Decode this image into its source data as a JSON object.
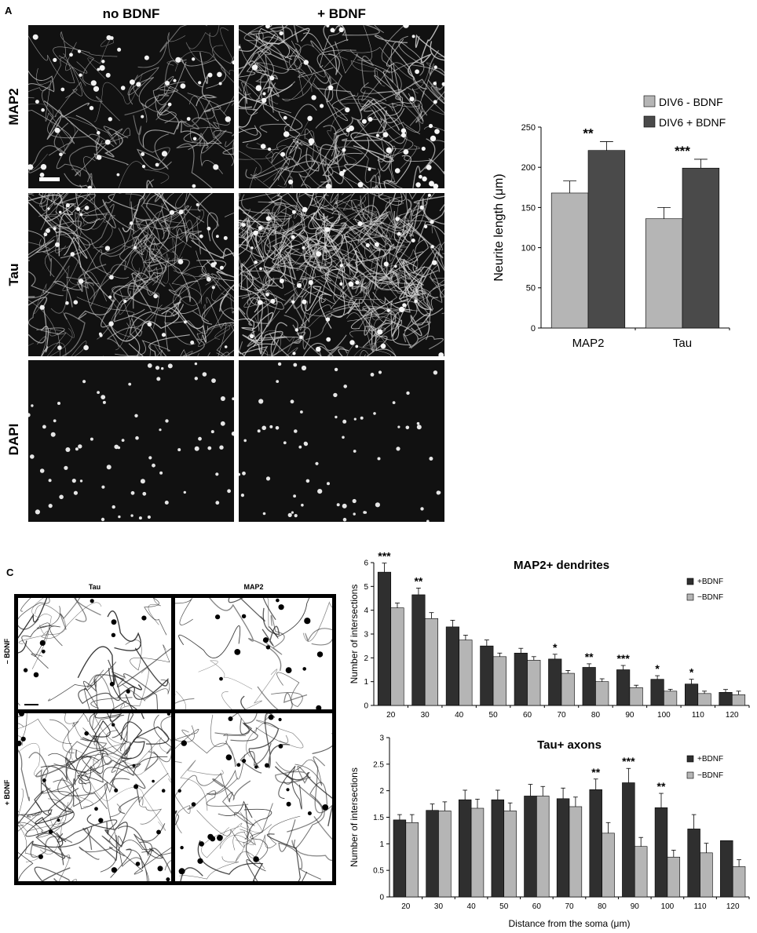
{
  "panelA": {
    "letter": "A",
    "col_labels": [
      "no BDNF",
      "+ BDNF"
    ],
    "row_labels": [
      "MAP2",
      "Tau",
      "DAPI"
    ]
  },
  "panelC": {
    "letter": "C",
    "col_labels": [
      "Tau",
      "MAP2"
    ],
    "row_labels": [
      "– BDNF",
      "+ BDNF"
    ]
  },
  "colors": {
    "light_bar": "#b5b5b5",
    "dark_bar": "#4a4a4a",
    "darkest_bar": "#2f2f2f"
  },
  "chart_data": [
    {
      "panel": "B",
      "type": "bar",
      "categories": [
        "MAP2",
        "Tau"
      ],
      "ylabel": "Neurite length (μm)",
      "ylim": [
        0,
        250
      ],
      "yticks": [
        0,
        50,
        100,
        150,
        200,
        250
      ],
      "legend_position": "top-right",
      "series": [
        {
          "name": "DIV6 - BDNF",
          "color": "#b5b5b5",
          "values": [
            168,
            136
          ],
          "errors": [
            15,
            14
          ]
        },
        {
          "name": "DIV6 + BDNF",
          "color": "#4a4a4a",
          "values": [
            221,
            199
          ],
          "errors": [
            11,
            11
          ]
        }
      ],
      "annotations": [
        "**",
        "***"
      ]
    },
    {
      "panel": "C-top",
      "type": "bar",
      "title": "MAP2+ dendrites",
      "ylabel": "Number of intersections",
      "categories": [
        "20",
        "30",
        "40",
        "50",
        "60",
        "70",
        "80",
        "90",
        "100",
        "110",
        "120"
      ],
      "ylim": [
        0,
        6
      ],
      "yticks": [
        0,
        1,
        2,
        3,
        4,
        5,
        6
      ],
      "legend_position": "top-right",
      "series": [
        {
          "name": "+BDNF",
          "color": "#2f2f2f",
          "values": [
            5.6,
            4.65,
            3.3,
            2.5,
            2.2,
            1.95,
            1.6,
            1.5,
            1.1,
            0.9,
            0.55
          ],
          "errors": [
            0.38,
            0.28,
            0.28,
            0.25,
            0.2,
            0.2,
            0.15,
            0.18,
            0.15,
            0.2,
            0.12
          ]
        },
        {
          "name": "−BDNF",
          "color": "#b5b5b5",
          "values": [
            4.1,
            3.65,
            2.75,
            2.05,
            1.9,
            1.35,
            1.0,
            0.75,
            0.6,
            0.5,
            0.45
          ],
          "errors": [
            0.2,
            0.25,
            0.2,
            0.15,
            0.15,
            0.12,
            0.12,
            0.1,
            0.08,
            0.1,
            0.15
          ]
        }
      ],
      "annotations": [
        "***",
        "**",
        "",
        "",
        "",
        "*",
        "**",
        "***",
        "*",
        "*",
        ""
      ]
    },
    {
      "panel": "C-bottom",
      "type": "bar",
      "title": "Tau+ axons",
      "ylabel": "Number of intersections",
      "xlabel": "Distance  from the soma (μm)",
      "categories": [
        "20",
        "30",
        "40",
        "50",
        "60",
        "70",
        "80",
        "90",
        "100",
        "110",
        "120"
      ],
      "ylim": [
        0,
        3
      ],
      "yticks": [
        0,
        0.5,
        1,
        1.5,
        2,
        2.5,
        3
      ],
      "legend_position": "top-right",
      "series": [
        {
          "name": "+BDNF",
          "color": "#2f2f2f",
          "values": [
            1.45,
            1.63,
            1.83,
            1.83,
            1.9,
            1.85,
            2.02,
            2.15,
            1.68,
            1.28,
            1.06
          ],
          "errors": [
            0.1,
            0.12,
            0.18,
            0.18,
            0.22,
            0.2,
            0.2,
            0.27,
            0.27,
            0.27,
            0.0
          ]
        },
        {
          "name": "−BDNF",
          "color": "#b5b5b5",
          "values": [
            1.4,
            1.62,
            1.67,
            1.62,
            1.9,
            1.7,
            1.2,
            0.95,
            0.75,
            0.83,
            0.57
          ],
          "errors": [
            0.15,
            0.17,
            0.17,
            0.15,
            0.18,
            0.18,
            0.2,
            0.17,
            0.13,
            0.18,
            0.13
          ]
        }
      ],
      "annotations": [
        "",
        "",
        "",
        "",
        "",
        "",
        "**",
        "***",
        "**",
        "",
        ""
      ]
    }
  ]
}
